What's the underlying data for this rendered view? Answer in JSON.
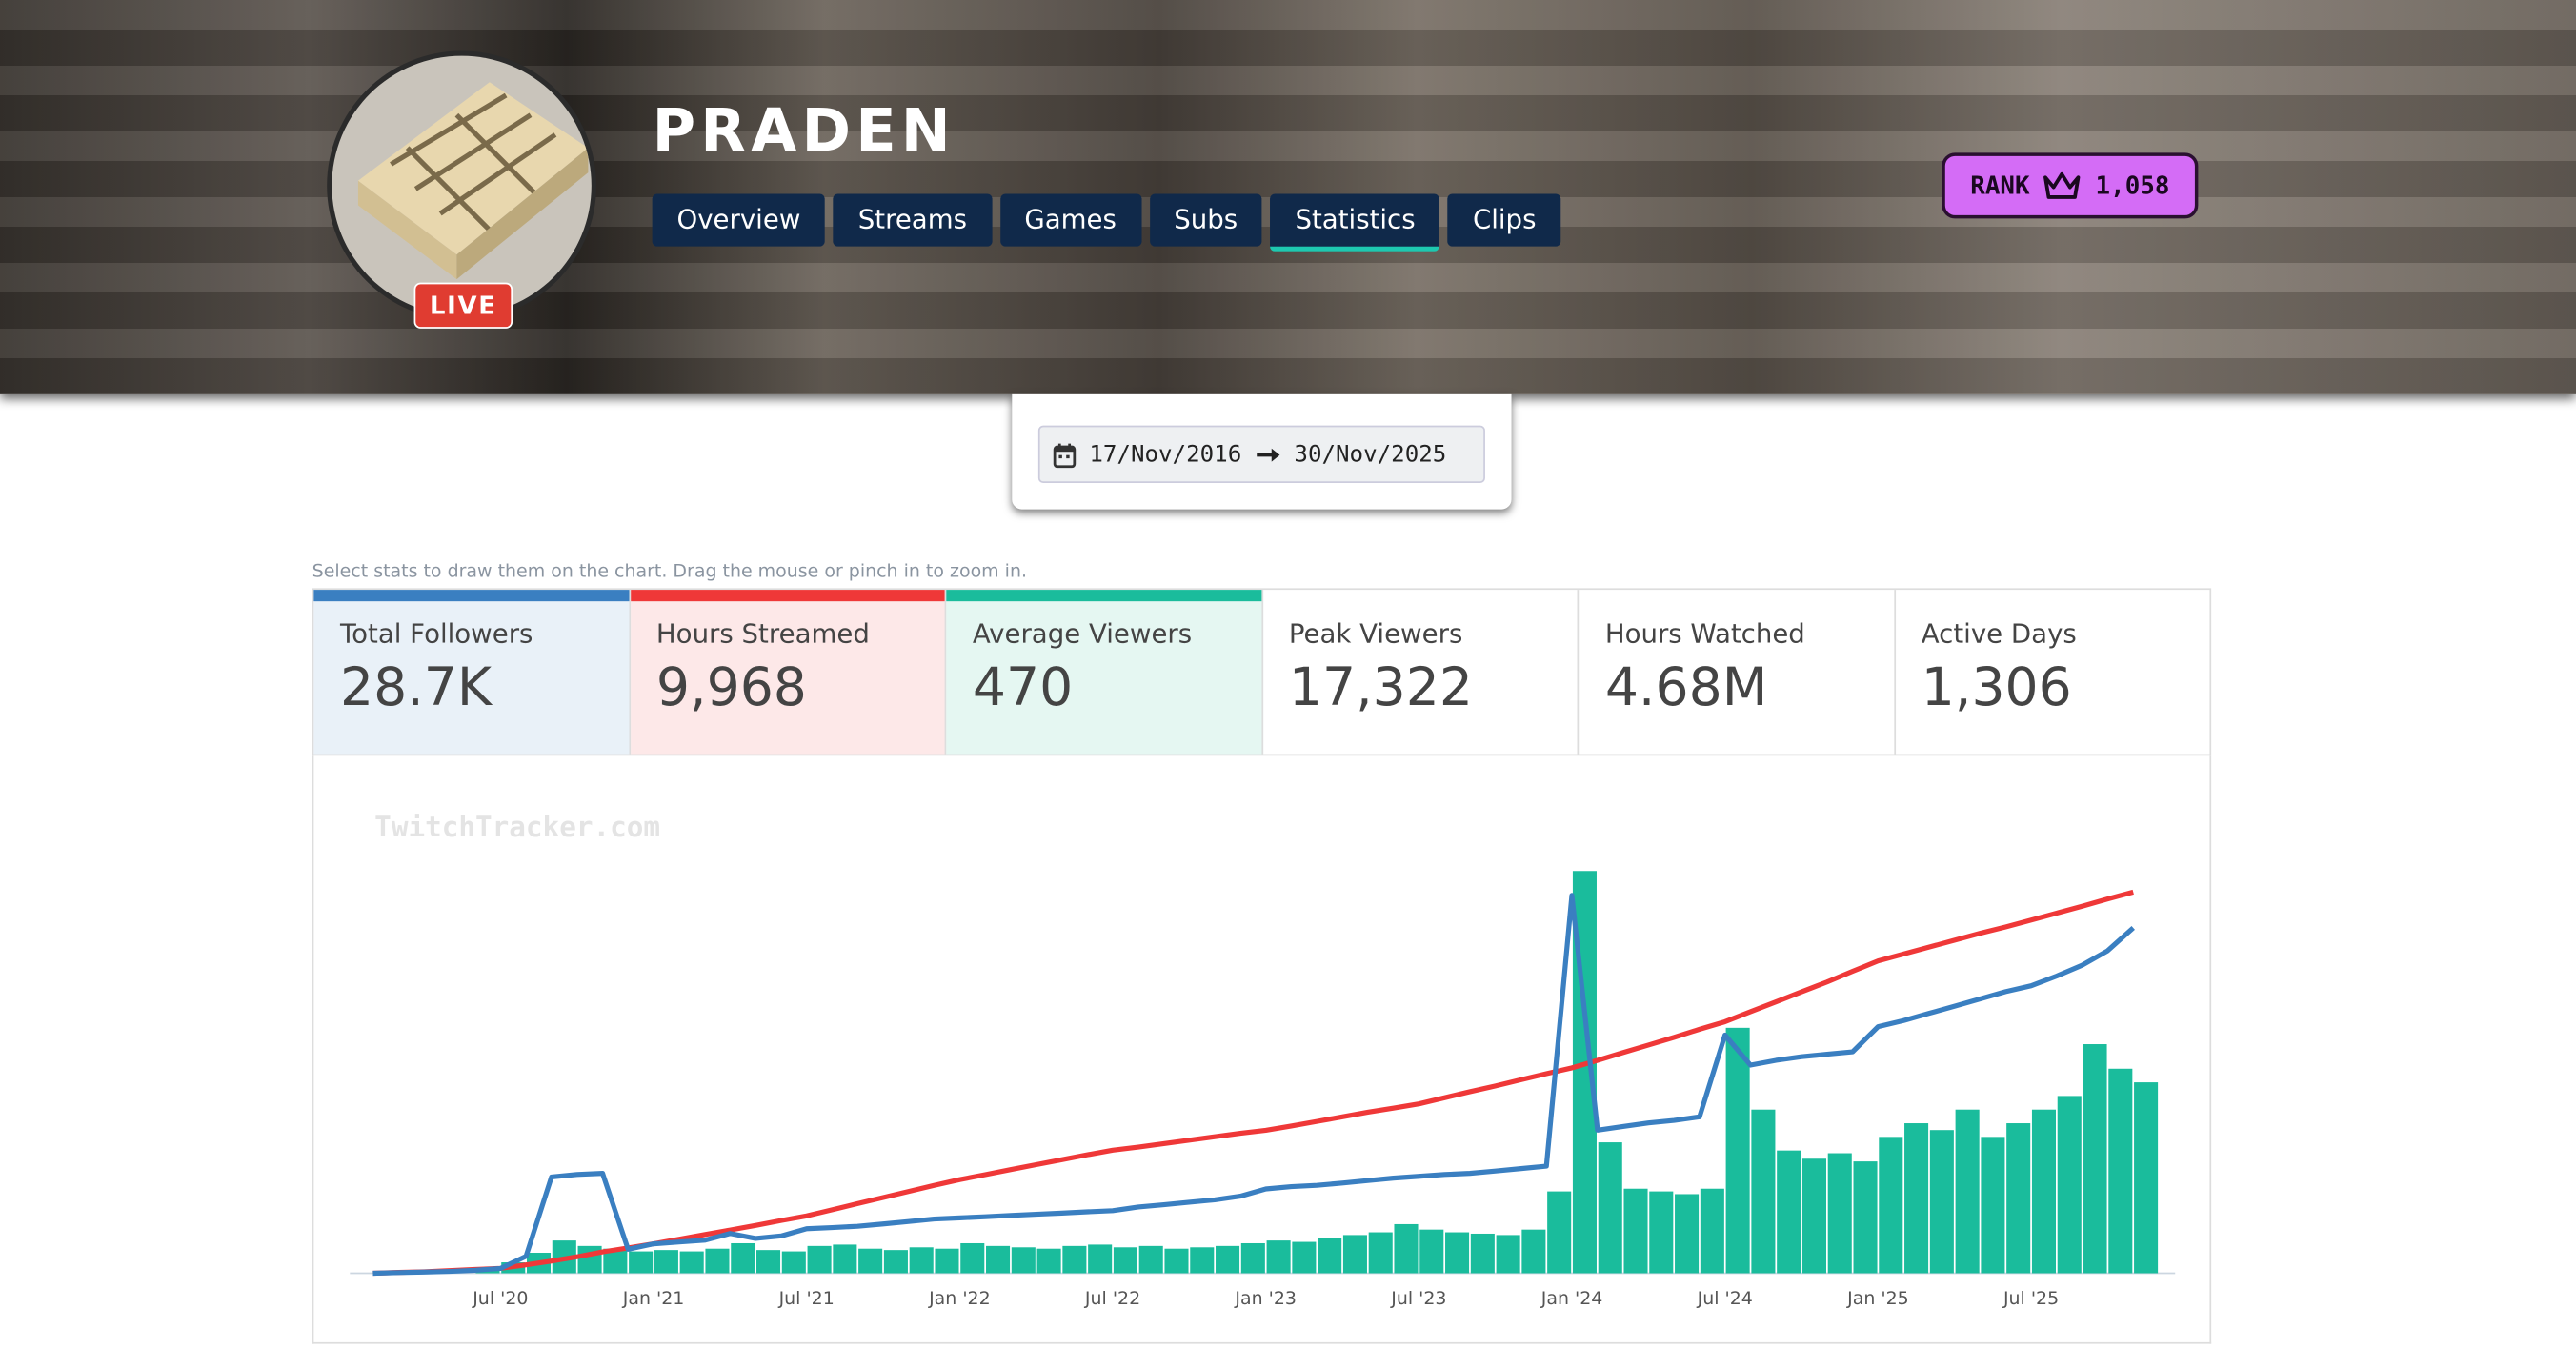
{
  "channel": "PRADEN",
  "live": "LIVE",
  "nav": [
    "Overview",
    "Streams",
    "Games",
    "Subs",
    "Statistics",
    "Clips"
  ],
  "active_tab": 4,
  "rank": {
    "label": "RANK",
    "value": "1,058"
  },
  "date_range": {
    "from": "17/Nov/2016",
    "to": "30/Nov/2025"
  },
  "hint": "Select stats to draw them on the chart. Drag the mouse or pinch in to zoom in.",
  "stats": [
    {
      "name": "Peak Viewers",
      "total": "17,322"
    },
    {
      "name": "Hours Watched",
      "total": "4.68M"
    },
    {
      "name": "Active Days",
      "total": "1,306"
    }
  ],
  "watermark": "TwitchTracker.com",
  "chart_data": {
    "type": "line",
    "x": [
      "2020-02",
      "2020-03",
      "2020-04",
      "2020-05",
      "2020-06",
      "2020-07",
      "2020-08",
      "2020-09",
      "2020-10",
      "2020-11",
      "2020-12",
      "2021-01",
      "2021-02",
      "2021-03",
      "2021-04",
      "2021-05",
      "2021-06",
      "2021-07",
      "2021-08",
      "2021-09",
      "2021-10",
      "2021-11",
      "2021-12",
      "2022-01",
      "2022-02",
      "2022-03",
      "2022-04",
      "2022-05",
      "2022-06",
      "2022-07",
      "2022-08",
      "2022-09",
      "2022-10",
      "2022-11",
      "2022-12",
      "2023-01",
      "2023-02",
      "2023-03",
      "2023-04",
      "2023-05",
      "2023-06",
      "2023-07",
      "2023-08",
      "2023-09",
      "2023-10",
      "2023-11",
      "2023-12",
      "2024-01",
      "2024-02",
      "2024-03",
      "2024-04",
      "2024-05",
      "2024-06",
      "2024-07",
      "2024-08",
      "2024-09",
      "2024-10",
      "2024-11",
      "2024-12",
      "2025-01",
      "2025-02",
      "2025-03",
      "2025-04",
      "2025-05",
      "2025-06",
      "2025-07",
      "2025-08",
      "2025-09",
      "2025-10",
      "2025-11"
    ],
    "xlim": [
      "2020-02",
      "2025-12"
    ],
    "xticks": [
      {
        "value": "2020-07",
        "label": "Jul '20"
      },
      {
        "value": "2021-01",
        "label": "Jan '21"
      },
      {
        "value": "2021-07",
        "label": "Jul '21"
      },
      {
        "value": "2022-01",
        "label": "Jan '22"
      },
      {
        "value": "2022-07",
        "label": "Jul '22"
      },
      {
        "value": "2023-01",
        "label": "Jan '23"
      },
      {
        "value": "2023-07",
        "label": "Jul '23"
      },
      {
        "value": "2024-01",
        "label": "Jan '24"
      },
      {
        "value": "2024-07",
        "label": "Jul '24"
      },
      {
        "value": "2025-01",
        "label": "Jan '25"
      },
      {
        "value": "2025-07",
        "label": "Jul '25"
      }
    ],
    "series": [
      {
        "name": "Total Followers",
        "total": "28.7K",
        "color": "#3a7fc1",
        "type": "line",
        "ylim": [
          0,
          34000
        ],
        "values": [
          0,
          50,
          100,
          150,
          250,
          400,
          1400,
          8000,
          8200,
          8300,
          2000,
          2450,
          2600,
          2750,
          3300,
          2900,
          3100,
          3700,
          3800,
          3900,
          4100,
          4300,
          4500,
          4600,
          4700,
          4800,
          4900,
          5000,
          5100,
          5200,
          5500,
          5700,
          5900,
          6100,
          6400,
          7000,
          7200,
          7300,
          7500,
          7700,
          7900,
          8050,
          8200,
          8300,
          8500,
          8700,
          8900,
          31400,
          11900,
          12200,
          12500,
          12700,
          13000,
          19800,
          17300,
          17700,
          18000,
          18200,
          18400,
          20500,
          21000,
          21600,
          22200,
          22800,
          23400,
          23900,
          24700,
          25600,
          26800,
          28700
        ]
      },
      {
        "name": "Hours Streamed",
        "total": "9,968",
        "color": "#ef3838",
        "type": "line",
        "ylim": [
          0,
          10700
        ],
        "values": [
          0,
          20,
          40,
          70,
          100,
          130,
          220,
          320,
          430,
          560,
          660,
          770,
          890,
          1010,
          1130,
          1250,
          1380,
          1500,
          1660,
          1820,
          1980,
          2140,
          2300,
          2450,
          2580,
          2710,
          2840,
          2970,
          3100,
          3220,
          3300,
          3390,
          3480,
          3570,
          3660,
          3740,
          3850,
          3970,
          4090,
          4210,
          4320,
          4430,
          4590,
          4750,
          4900,
          5060,
          5220,
          5370,
          5570,
          5770,
          5970,
          6170,
          6380,
          6580,
          6840,
          7100,
          7360,
          7620,
          7900,
          8170,
          8350,
          8530,
          8710,
          8890,
          9060,
          9240,
          9420,
          9600,
          9790,
          9968
        ]
      },
      {
        "name": "Average Viewers",
        "total": "470",
        "color": "#1abc9c",
        "type": "bar",
        "ylim": [
          0,
          3000
        ],
        "values": [
          0,
          0,
          0,
          0,
          20,
          80,
          150,
          240,
          200,
          180,
          160,
          170,
          160,
          180,
          220,
          170,
          160,
          200,
          210,
          180,
          170,
          190,
          180,
          220,
          200,
          190,
          180,
          200,
          210,
          190,
          200,
          180,
          190,
          200,
          220,
          240,
          230,
          260,
          280,
          300,
          360,
          320,
          300,
          290,
          280,
          320,
          600,
          2950,
          960,
          620,
          600,
          580,
          620,
          1800,
          1200,
          900,
          840,
          880,
          820,
          1000,
          1100,
          1050,
          1200,
          1000,
          1100,
          1200,
          1300,
          1680,
          1500,
          1400
        ]
      }
    ]
  }
}
